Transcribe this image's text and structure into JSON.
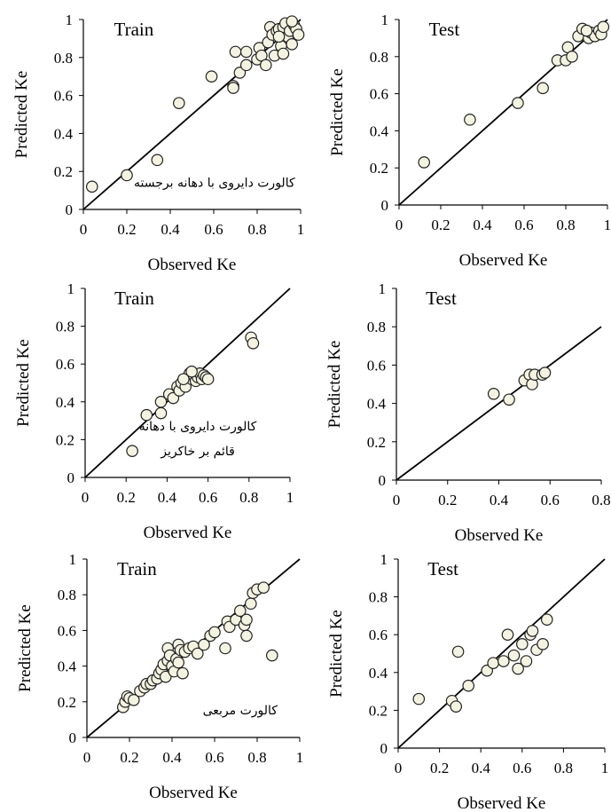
{
  "chart_data": [
    {
      "type": "scatter",
      "title": "Train",
      "xlabel": "Observed Ke",
      "ylabel": "Predicted Ke",
      "xlim": [
        0,
        1
      ],
      "ylim": [
        0,
        1
      ],
      "xticks": [
        "0",
        "0.2",
        "0.4",
        "0.6",
        "0.8",
        "1"
      ],
      "yticks": [
        "0",
        "0.2",
        "0.4",
        "0.6",
        "0.8",
        "1"
      ],
      "xtick_values": [
        0,
        0.2,
        0.4,
        0.6,
        0.8,
        1
      ],
      "ytick_values": [
        0,
        0.2,
        0.4,
        0.6,
        0.8,
        1
      ],
      "reference_line": [
        [
          0,
          0
        ],
        [
          1,
          1
        ]
      ],
      "annotation": "کالورت دایروی با دهانه برجسته",
      "annotation_lines": [
        "کالورت دایروی با دهانه برجسته"
      ],
      "annotation_anchor": [
        0.53,
        0.12
      ],
      "points": [
        [
          0.04,
          0.12
        ],
        [
          0.2,
          0.18
        ],
        [
          0.34,
          0.26
        ],
        [
          0.44,
          0.56
        ],
        [
          0.59,
          0.7
        ],
        [
          0.69,
          0.65
        ],
        [
          0.69,
          0.64
        ],
        [
          0.7,
          0.83
        ],
        [
          0.72,
          0.72
        ],
        [
          0.75,
          0.83
        ],
        [
          0.75,
          0.76
        ],
        [
          0.8,
          0.79
        ],
        [
          0.81,
          0.85
        ],
        [
          0.82,
          0.81
        ],
        [
          0.84,
          0.76
        ],
        [
          0.85,
          0.88
        ],
        [
          0.86,
          0.96
        ],
        [
          0.87,
          0.92
        ],
        [
          0.88,
          0.81
        ],
        [
          0.89,
          0.94
        ],
        [
          0.9,
          0.95
        ],
        [
          0.91,
          0.86
        ],
        [
          0.92,
          0.96
        ],
        [
          0.92,
          0.82
        ],
        [
          0.93,
          0.98
        ],
        [
          0.94,
          0.91
        ],
        [
          0.95,
          0.94
        ],
        [
          0.96,
          0.87
        ],
        [
          0.97,
          0.97
        ],
        [
          0.98,
          0.95
        ],
        [
          0.99,
          0.92
        ],
        [
          0.96,
          0.99
        ],
        [
          0.9,
          0.91
        ]
      ]
    },
    {
      "type": "scatter",
      "title": "Test",
      "xlabel": "Observed Ke",
      "ylabel": "Predicted Ke",
      "xlim": [
        0,
        1
      ],
      "ylim": [
        0,
        1
      ],
      "xticks": [
        "0",
        "0.2",
        "0.4",
        "0.6",
        "0.8",
        "1"
      ],
      "yticks": [
        "0",
        "0.2",
        "0.4",
        "0.6",
        "0.8",
        "1"
      ],
      "xtick_values": [
        0,
        0.2,
        0.4,
        0.6,
        0.8,
        1
      ],
      "ytick_values": [
        0,
        0.2,
        0.4,
        0.6,
        0.8,
        1
      ],
      "reference_line": [
        [
          0,
          0
        ],
        [
          1,
          1
        ]
      ],
      "annotation": "",
      "annotation_lines": [],
      "annotation_anchor": [
        0.5,
        0.1
      ],
      "points": [
        [
          0.12,
          0.23
        ],
        [
          0.34,
          0.46
        ],
        [
          0.57,
          0.55
        ],
        [
          0.69,
          0.63
        ],
        [
          0.76,
          0.78
        ],
        [
          0.8,
          0.78
        ],
        [
          0.81,
          0.85
        ],
        [
          0.83,
          0.8
        ],
        [
          0.86,
          0.91
        ],
        [
          0.88,
          0.95
        ],
        [
          0.91,
          0.9
        ],
        [
          0.92,
          0.93
        ],
        [
          0.94,
          0.91
        ],
        [
          0.96,
          0.94
        ],
        [
          0.97,
          0.92
        ],
        [
          0.98,
          0.96
        ],
        [
          0.9,
          0.94
        ]
      ]
    },
    {
      "type": "scatter",
      "title": "Train",
      "xlabel": "Observed Ke",
      "ylabel": "Predicted Ke",
      "xlim": [
        0,
        1
      ],
      "ylim": [
        0,
        1
      ],
      "xticks": [
        "0",
        "0.2",
        "0.4",
        "0.6",
        "0.8",
        "1"
      ],
      "yticks": [
        "0",
        "0.2",
        "0.4",
        "0.6",
        "0.8",
        "1"
      ],
      "xtick_values": [
        0,
        0.2,
        0.4,
        0.6,
        0.8,
        1
      ],
      "ytick_values": [
        0,
        0.2,
        0.4,
        0.6,
        0.8,
        1
      ],
      "reference_line": [
        [
          0,
          0
        ],
        [
          1,
          1
        ]
      ],
      "annotation": "کالورت دایروی با دهانه قائم بر خاکریز",
      "annotation_lines": [
        "کالورت دایروی با دهانه",
        "قائم بر خاکریز"
      ],
      "annotation_anchor": [
        0.55,
        0.25
      ],
      "points": [
        [
          0.23,
          0.14
        ],
        [
          0.3,
          0.33
        ],
        [
          0.37,
          0.34
        ],
        [
          0.37,
          0.4
        ],
        [
          0.41,
          0.44
        ],
        [
          0.43,
          0.42
        ],
        [
          0.45,
          0.48
        ],
        [
          0.46,
          0.46
        ],
        [
          0.47,
          0.5
        ],
        [
          0.49,
          0.48
        ],
        [
          0.5,
          0.53
        ],
        [
          0.51,
          0.55
        ],
        [
          0.52,
          0.52
        ],
        [
          0.53,
          0.54
        ],
        [
          0.54,
          0.51
        ],
        [
          0.55,
          0.53
        ],
        [
          0.56,
          0.55
        ],
        [
          0.57,
          0.52
        ],
        [
          0.58,
          0.54
        ],
        [
          0.59,
          0.53
        ],
        [
          0.6,
          0.52
        ],
        [
          0.52,
          0.56
        ],
        [
          0.48,
          0.52
        ],
        [
          0.81,
          0.74
        ],
        [
          0.82,
          0.71
        ]
      ]
    },
    {
      "type": "scatter",
      "title": "Test",
      "xlabel": "Observed Ke",
      "ylabel": "Predicted Ke",
      "xlim": [
        0,
        0.8
      ],
      "ylim": [
        0,
        1
      ],
      "xticks": [
        "0",
        "0.2",
        "0.4",
        "0.6",
        "0.8"
      ],
      "yticks": [
        "0",
        "0.2",
        "0.4",
        "0.6",
        "0.8",
        "1"
      ],
      "xtick_values": [
        0,
        0.2,
        0.4,
        0.6,
        0.8
      ],
      "ytick_values": [
        0,
        0.2,
        0.4,
        0.6,
        0.8,
        1
      ],
      "reference_line": [
        [
          0,
          0
        ],
        [
          0.8,
          0.8
        ]
      ],
      "annotation": "",
      "annotation_lines": [],
      "annotation_anchor": [
        0.4,
        0.1
      ],
      "points": [
        [
          0.38,
          0.45
        ],
        [
          0.44,
          0.42
        ],
        [
          0.5,
          0.52
        ],
        [
          0.52,
          0.55
        ],
        [
          0.53,
          0.5
        ],
        [
          0.54,
          0.55
        ],
        [
          0.57,
          0.55
        ],
        [
          0.58,
          0.56
        ]
      ]
    },
    {
      "type": "scatter",
      "title": "Train",
      "xlabel": "Observed Ke",
      "ylabel": "Predicted Ke",
      "xlim": [
        0,
        1
      ],
      "ylim": [
        0,
        1
      ],
      "xticks": [
        "0",
        "0.2",
        "0.4",
        "0.6",
        "0.8",
        "1"
      ],
      "yticks": [
        "0",
        "0.2",
        "0.4",
        "0.6",
        "0.8",
        "1"
      ],
      "xtick_values": [
        0,
        0.2,
        0.4,
        0.6,
        0.8,
        1
      ],
      "ytick_values": [
        0,
        0.2,
        0.4,
        0.6,
        0.8,
        1
      ],
      "reference_line": [
        [
          0,
          0
        ],
        [
          1,
          1
        ]
      ],
      "annotation": "کالورت مربعی",
      "annotation_lines": [
        "کالورت مربعی"
      ],
      "annotation_anchor": [
        0.72,
        0.13
      ],
      "points": [
        [
          0.17,
          0.17
        ],
        [
          0.18,
          0.2
        ],
        [
          0.19,
          0.23
        ],
        [
          0.2,
          0.22
        ],
        [
          0.22,
          0.21
        ],
        [
          0.25,
          0.26
        ],
        [
          0.27,
          0.28
        ],
        [
          0.28,
          0.3
        ],
        [
          0.3,
          0.3
        ],
        [
          0.31,
          0.32
        ],
        [
          0.33,
          0.33
        ],
        [
          0.34,
          0.36
        ],
        [
          0.35,
          0.38
        ],
        [
          0.36,
          0.41
        ],
        [
          0.37,
          0.34
        ],
        [
          0.38,
          0.5
        ],
        [
          0.38,
          0.43
        ],
        [
          0.39,
          0.46
        ],
        [
          0.4,
          0.4
        ],
        [
          0.41,
          0.37
        ],
        [
          0.42,
          0.44
        ],
        [
          0.43,
          0.42
        ],
        [
          0.43,
          0.52
        ],
        [
          0.44,
          0.49
        ],
        [
          0.45,
          0.36
        ],
        [
          0.46,
          0.48
        ],
        [
          0.48,
          0.5
        ],
        [
          0.5,
          0.51
        ],
        [
          0.52,
          0.47
        ],
        [
          0.55,
          0.52
        ],
        [
          0.58,
          0.57
        ],
        [
          0.6,
          0.59
        ],
        [
          0.65,
          0.5
        ],
        [
          0.66,
          0.65
        ],
        [
          0.67,
          0.62
        ],
        [
          0.7,
          0.66
        ],
        [
          0.72,
          0.71
        ],
        [
          0.74,
          0.63
        ],
        [
          0.75,
          0.66
        ],
        [
          0.75,
          0.57
        ],
        [
          0.77,
          0.75
        ],
        [
          0.78,
          0.81
        ],
        [
          0.8,
          0.83
        ],
        [
          0.83,
          0.84
        ],
        [
          0.87,
          0.46
        ]
      ]
    },
    {
      "type": "scatter",
      "title": "Test",
      "xlabel": "Observed Ke",
      "ylabel": "Predicted Ke",
      "xlim": [
        0,
        1
      ],
      "ylim": [
        0,
        1
      ],
      "xticks": [
        "0",
        "0.2",
        "0.4",
        "0.6",
        "0.8",
        "1"
      ],
      "yticks": [
        "0",
        "0.2",
        "0.4",
        "0.6",
        "0.8",
        "1"
      ],
      "xtick_values": [
        0,
        0.2,
        0.4,
        0.6,
        0.8,
        1
      ],
      "ytick_values": [
        0,
        0.2,
        0.4,
        0.6,
        0.8,
        1
      ],
      "reference_line": [
        [
          0,
          0
        ],
        [
          1,
          1
        ]
      ],
      "annotation": "",
      "annotation_lines": [],
      "annotation_anchor": [
        0.5,
        0.1
      ],
      "points": [
        [
          0.1,
          0.26
        ],
        [
          0.26,
          0.25
        ],
        [
          0.28,
          0.22
        ],
        [
          0.29,
          0.51
        ],
        [
          0.34,
          0.33
        ],
        [
          0.43,
          0.41
        ],
        [
          0.46,
          0.45
        ],
        [
          0.51,
          0.46
        ],
        [
          0.53,
          0.6
        ],
        [
          0.56,
          0.49
        ],
        [
          0.58,
          0.42
        ],
        [
          0.6,
          0.55
        ],
        [
          0.62,
          0.46
        ],
        [
          0.64,
          0.6
        ],
        [
          0.65,
          0.62
        ],
        [
          0.67,
          0.52
        ],
        [
          0.7,
          0.55
        ],
        [
          0.72,
          0.68
        ]
      ]
    }
  ]
}
